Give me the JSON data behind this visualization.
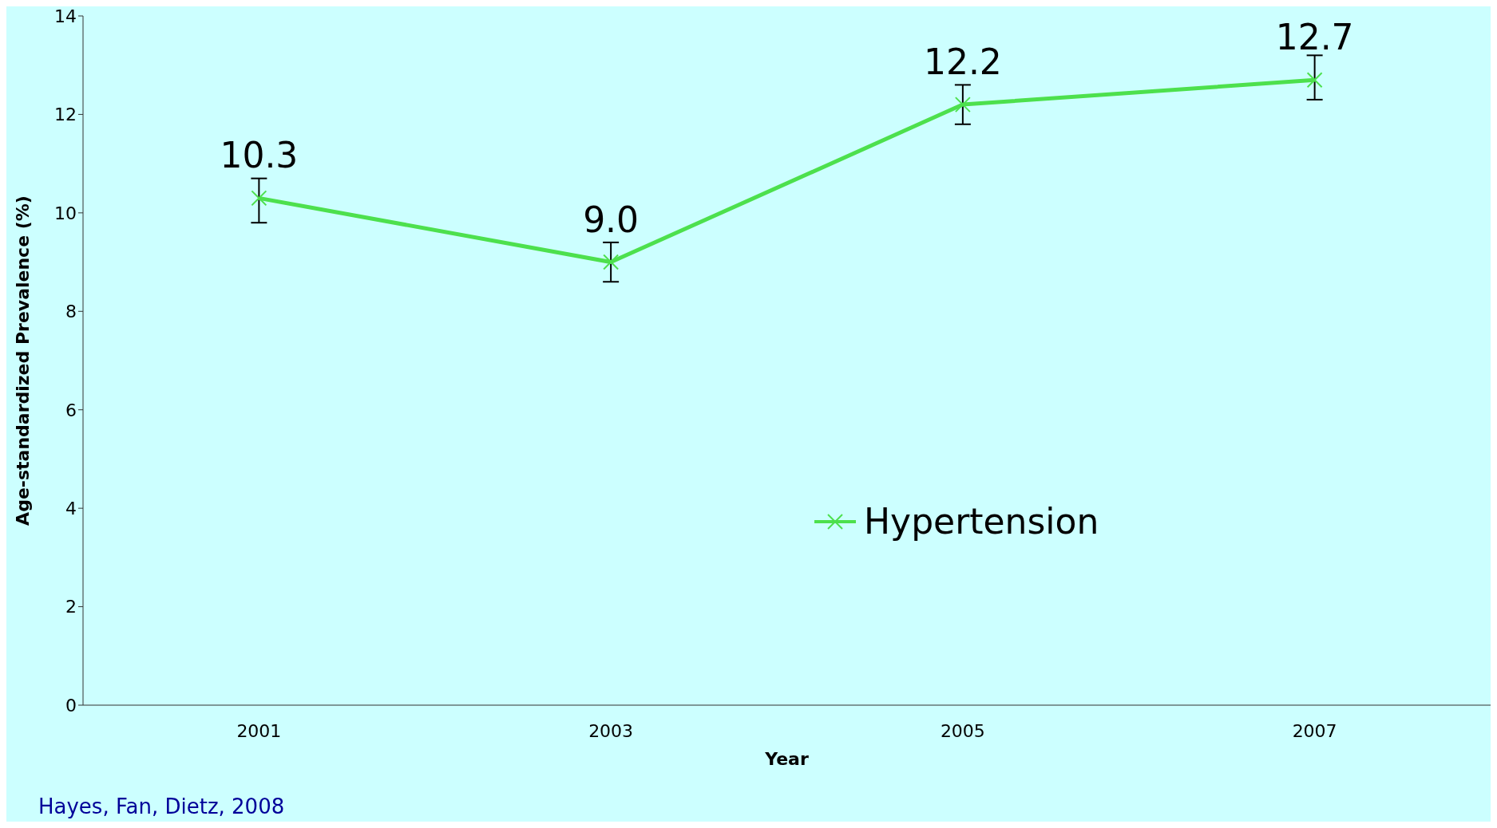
{
  "chart_data": {
    "type": "line",
    "xlabel": "Year",
    "ylabel": "Age-standardized Prevalence (%)",
    "categories": [
      "2001",
      "2003",
      "2005",
      "2007"
    ],
    "series": [
      {
        "name": "Hypertension",
        "color": "#4de04d",
        "values": [
          10.3,
          9.0,
          12.2,
          12.7
        ],
        "errors": [
          [
            9.8,
            10.7
          ],
          [
            8.6,
            9.4
          ],
          [
            11.8,
            12.6
          ],
          [
            12.3,
            13.2
          ]
        ],
        "value_labels": [
          "10.3",
          "9.0",
          "12.2",
          "12.7"
        ]
      }
    ],
    "ylim": [
      0,
      14
    ],
    "yticks": [
      0,
      2,
      4,
      6,
      8,
      10,
      12,
      14
    ],
    "marker": "cross",
    "legend": "center",
    "grid": false,
    "annotations": [
      "Hayes, Fan, Dietz, 2008"
    ]
  }
}
